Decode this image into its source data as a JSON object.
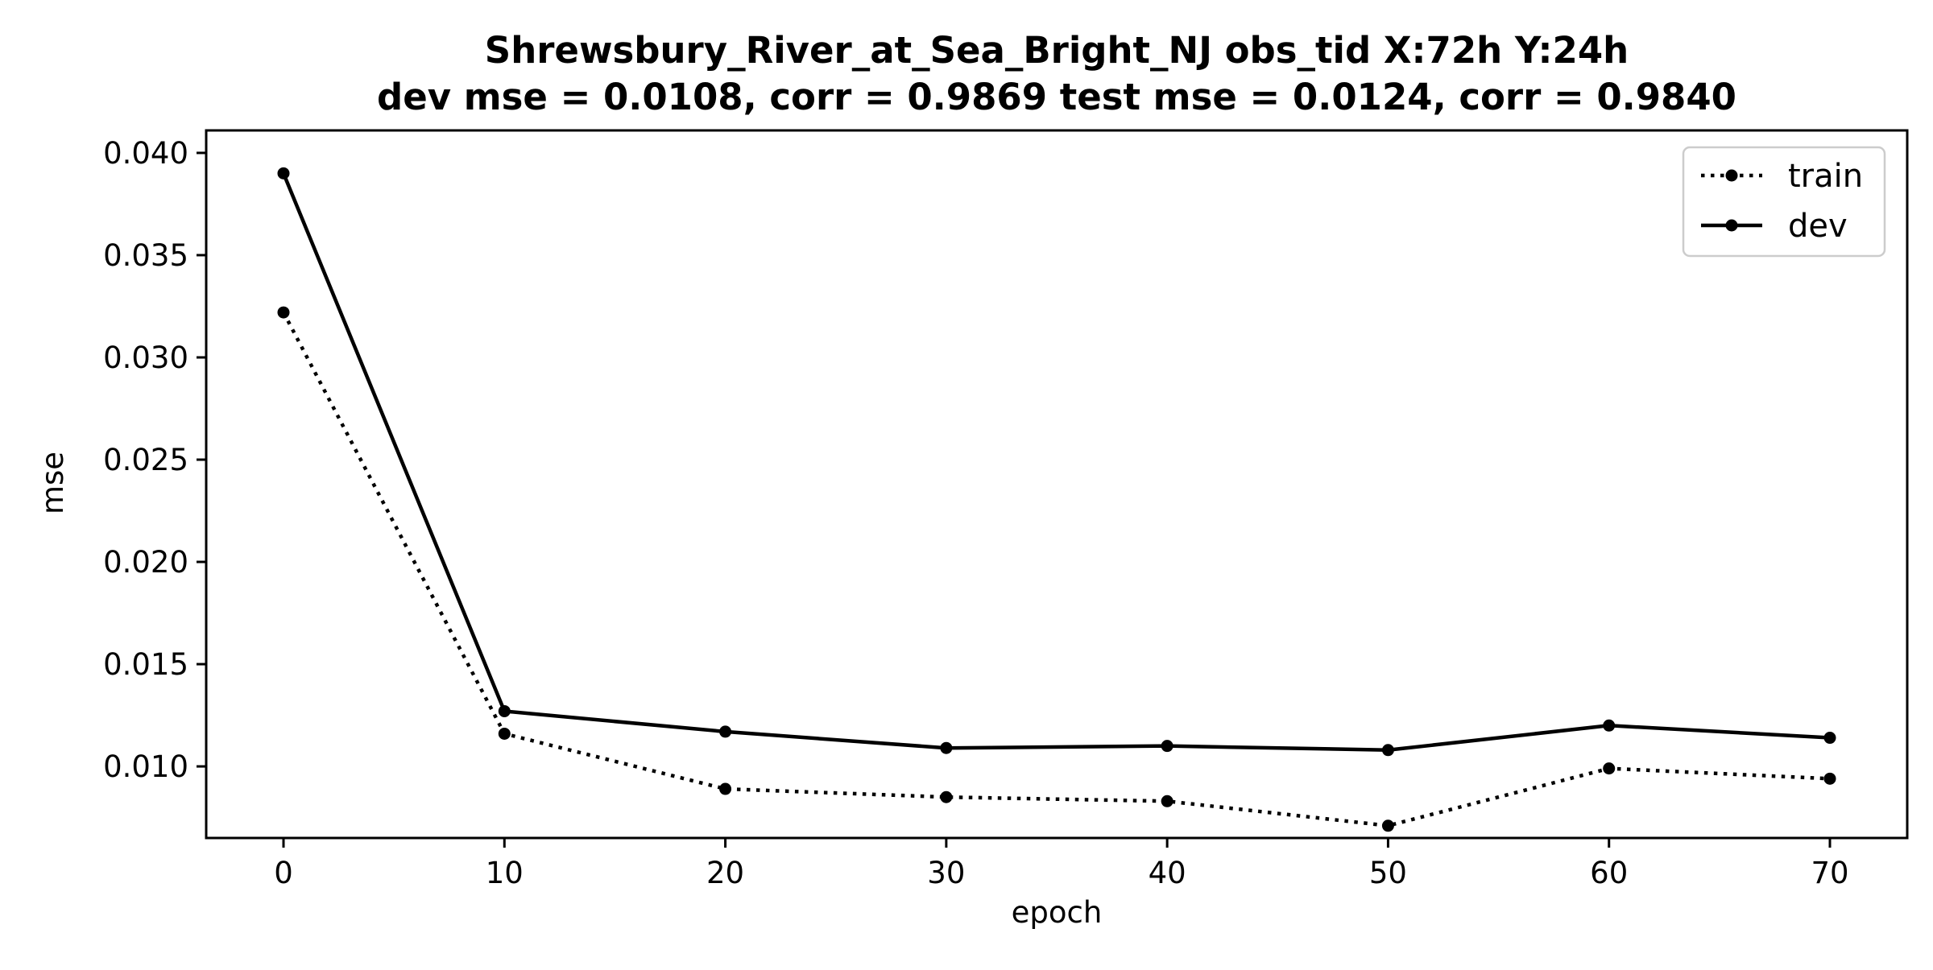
{
  "chart_data": {
    "type": "line",
    "title": "Shrewsbury_River_at_Sea_Bright_NJ   obs_tid   X:72h   Y:24h",
    "subtitle": "dev mse = 0.0108, corr = 0.9869   test mse = 0.0124, corr = 0.9840",
    "xlabel": "epoch",
    "ylabel": "mse",
    "x": [
      0,
      10,
      20,
      30,
      40,
      50,
      60,
      70
    ],
    "xlim": [
      -3.5,
      73.5
    ],
    "ylim": [
      0.0065,
      0.0411
    ],
    "xticks": [
      0,
      10,
      20,
      30,
      40,
      50,
      60,
      70
    ],
    "xtick_labels": [
      "0",
      "10",
      "20",
      "30",
      "40",
      "50",
      "60",
      "70"
    ],
    "yticks": [
      0.01,
      0.015,
      0.02,
      0.025,
      0.03,
      0.035,
      0.04
    ],
    "ytick_labels": [
      "0.010",
      "0.015",
      "0.020",
      "0.025",
      "0.030",
      "0.035",
      "0.040"
    ],
    "grid": false,
    "legend_position": "top-right",
    "series": [
      {
        "name": "train",
        "line_style": "dotted",
        "marker": "circle",
        "color": "#000000",
        "values": [
          0.0322,
          0.0116,
          0.0089,
          0.0085,
          0.0083,
          0.0071,
          0.0099,
          0.0094
        ]
      },
      {
        "name": "dev",
        "line_style": "solid",
        "marker": "circle",
        "color": "#000000",
        "values": [
          0.039,
          0.0127,
          0.0117,
          0.0109,
          0.011,
          0.0108,
          0.012,
          0.0114
        ]
      }
    ]
  }
}
